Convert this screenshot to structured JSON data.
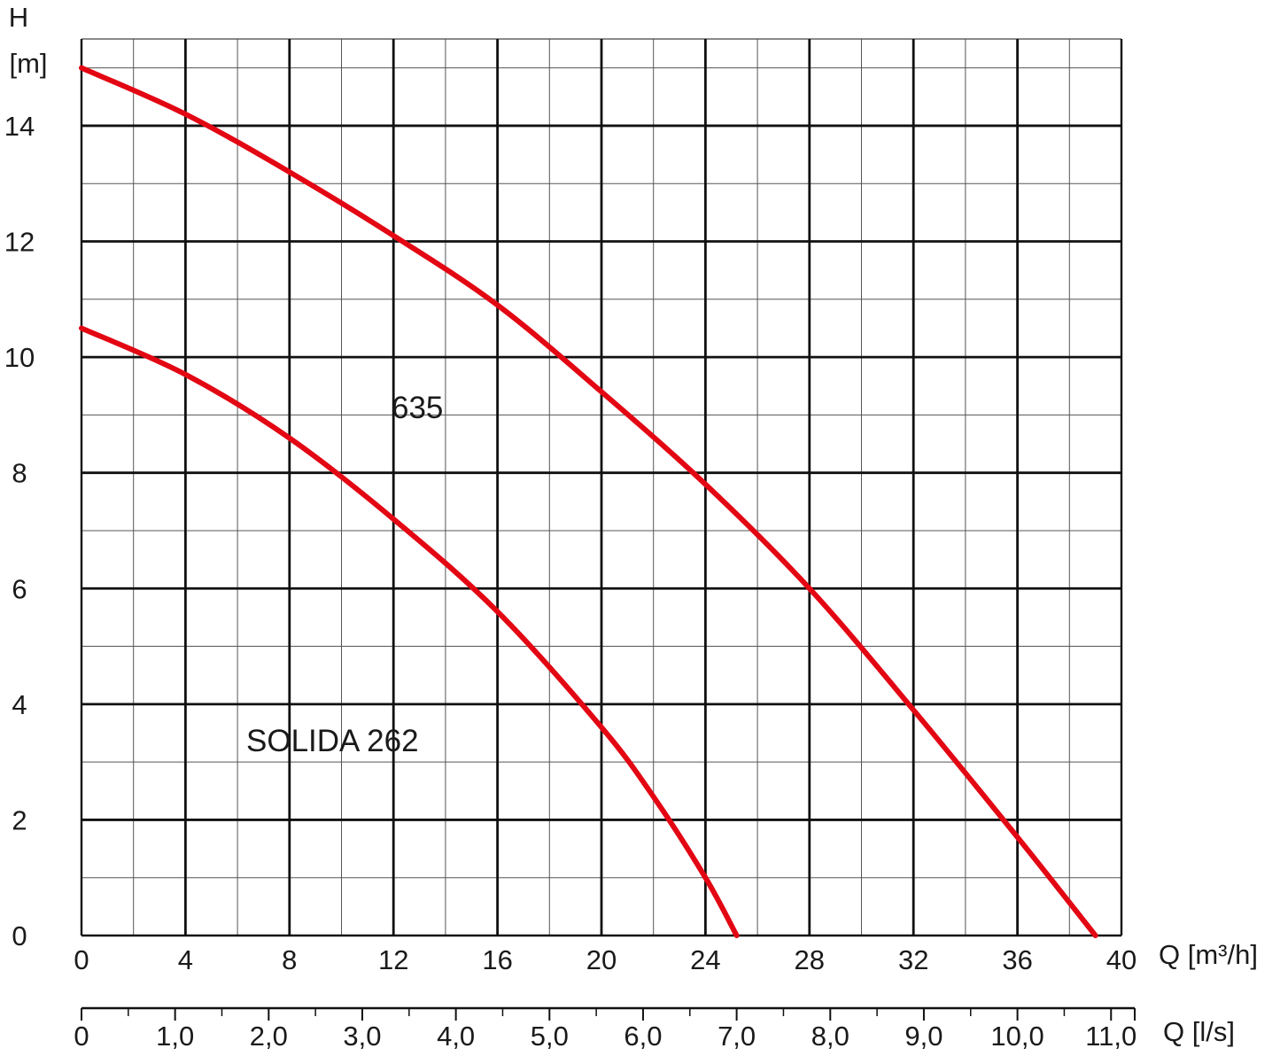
{
  "chart_data": {
    "type": "line",
    "y_label": "H",
    "y_unit": "[m]",
    "x_label": "Q [m³/h]",
    "x2_label": "Q [l/s]",
    "xlim": [
      0,
      40
    ],
    "ylim": [
      0,
      15.5
    ],
    "x_ticks": [
      "0",
      "4",
      "8",
      "12",
      "16",
      "20",
      "24",
      "28",
      "32",
      "36",
      "40"
    ],
    "y_ticks": [
      "0",
      "2",
      "4",
      "6",
      "8",
      "10",
      "12",
      "14"
    ],
    "x2_ticks": [
      "0",
      "1,0",
      "2,0",
      "3,0",
      "4,0",
      "5,0",
      "6,0",
      "7,0",
      "8,0",
      "9,0",
      "10,0",
      "11,0"
    ],
    "grid": true,
    "series": [
      {
        "name": "635",
        "color": "#e30613",
        "x": [
          0,
          4,
          8,
          12,
          16,
          20,
          24,
          28,
          32,
          36,
          39
        ],
        "y": [
          15,
          14.2,
          13.2,
          12.1,
          10.9,
          9.4,
          7.8,
          6.0,
          3.9,
          1.7,
          0
        ]
      },
      {
        "name": "SOLIDA 262",
        "color": "#e30613",
        "x": [
          0,
          4,
          8,
          12,
          16,
          20,
          22,
          24,
          25.2
        ],
        "y": [
          10.5,
          9.7,
          8.6,
          7.2,
          5.6,
          3.6,
          2.4,
          1.0,
          0
        ]
      }
    ]
  }
}
